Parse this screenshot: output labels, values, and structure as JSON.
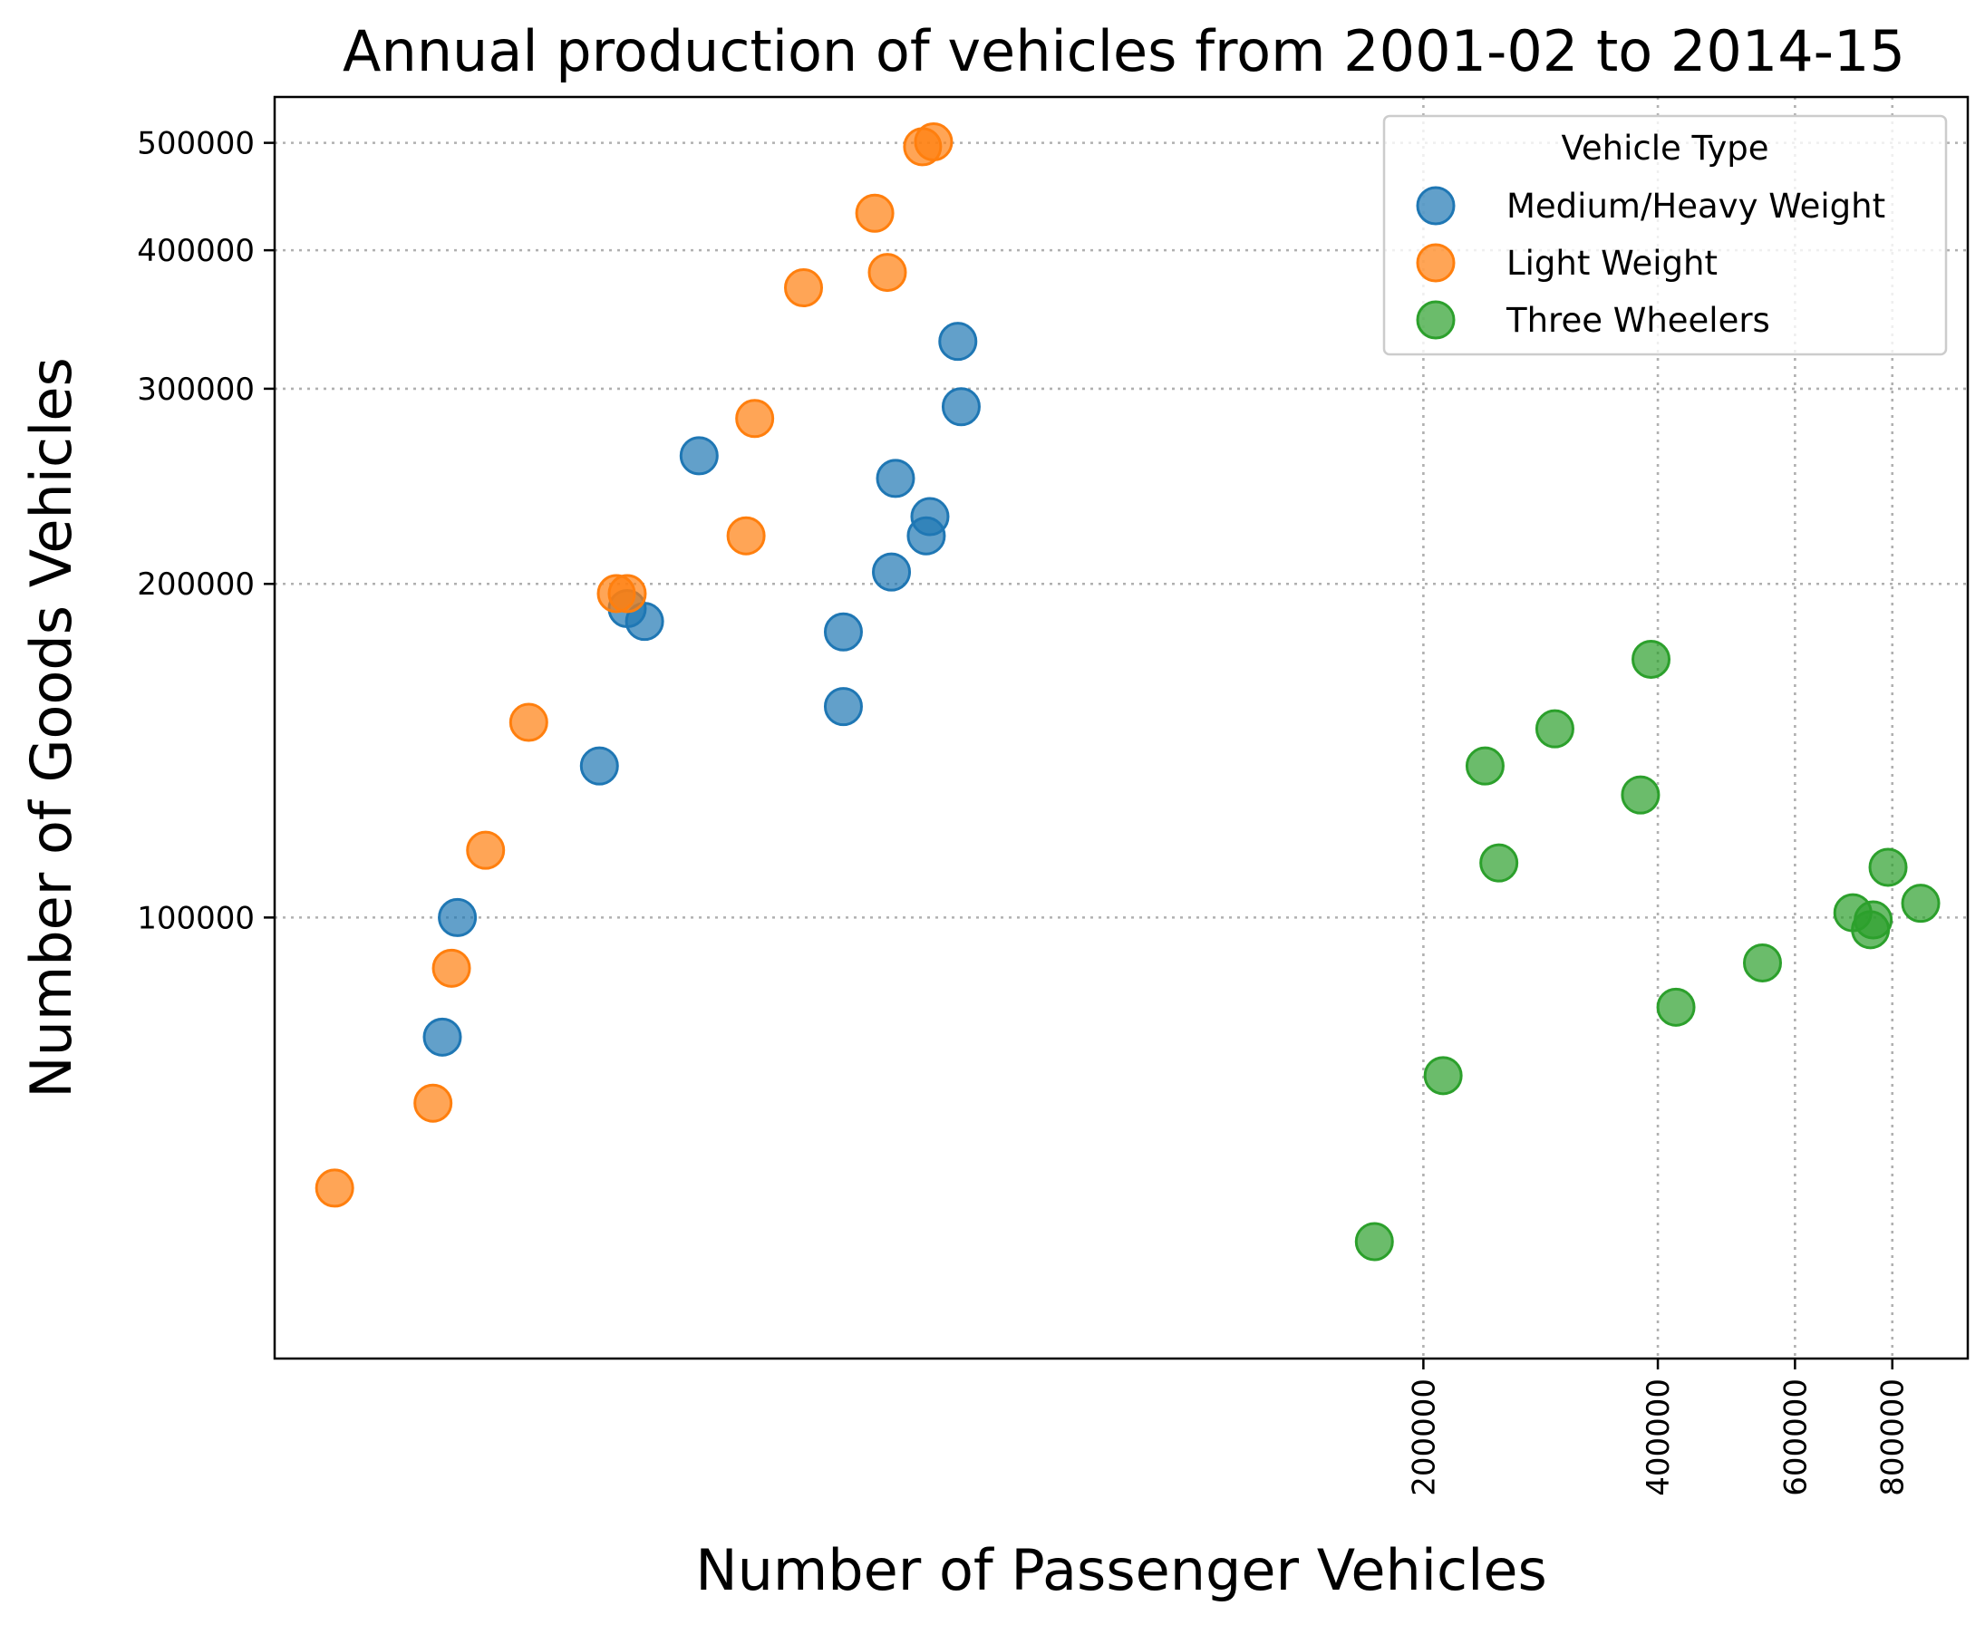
{
  "chart_data": {
    "type": "scatter",
    "title": "Annual production of vehicles from 2001-02 to 2014-15",
    "xlabel": "Number of Passenger Vehicles",
    "ylabel": "Number of Goods Vehicles",
    "x_scale": "log",
    "y_scale": "log",
    "xlim": [
      6700,
      1000000
    ],
    "ylim": [
      40000,
      550000
    ],
    "x_ticks": [
      200000,
      400000,
      600000,
      800000
    ],
    "x_tick_labels": [
      "200000",
      "400000",
      "600000",
      "800000"
    ],
    "y_ticks": [
      100000,
      200000,
      300000,
      400000,
      500000
    ],
    "y_tick_labels": [
      "100000",
      "200000",
      "300000",
      "400000",
      "500000"
    ],
    "grid": true,
    "legend": {
      "title": "Vehicle Type",
      "position": "upper right"
    },
    "series": [
      {
        "name": "Medium/Heavy Weight",
        "color": "#1f77b4",
        "points": [
          {
            "x": 11500,
            "y": 100000
          },
          {
            "x": 11000,
            "y": 78000
          },
          {
            "x": 17500,
            "y": 137000
          },
          {
            "x": 19000,
            "y": 190000
          },
          {
            "x": 20000,
            "y": 185000
          },
          {
            "x": 23500,
            "y": 261000
          },
          {
            "x": 36000,
            "y": 181000
          },
          {
            "x": 36000,
            "y": 155000
          },
          {
            "x": 41500,
            "y": 205000
          },
          {
            "x": 42000,
            "y": 249000
          },
          {
            "x": 46000,
            "y": 221000
          },
          {
            "x": 46500,
            "y": 230000
          },
          {
            "x": 50500,
            "y": 331000
          },
          {
            "x": 51000,
            "y": 289000
          }
        ]
      },
      {
        "name": "Light Weight",
        "color": "#ff7f0e",
        "points": [
          {
            "x": 8000,
            "y": 57000
          },
          {
            "x": 10700,
            "y": 68000
          },
          {
            "x": 11300,
            "y": 90000
          },
          {
            "x": 12500,
            "y": 115000
          },
          {
            "x": 14200,
            "y": 150000
          },
          {
            "x": 18400,
            "y": 196000
          },
          {
            "x": 19000,
            "y": 196000
          },
          {
            "x": 27000,
            "y": 221000
          },
          {
            "x": 27700,
            "y": 282000
          },
          {
            "x": 32000,
            "y": 370000
          },
          {
            "x": 39500,
            "y": 432000
          },
          {
            "x": 41000,
            "y": 382000
          },
          {
            "x": 45500,
            "y": 496000
          },
          {
            "x": 47000,
            "y": 501000
          }
        ]
      },
      {
        "name": "Three Wheelers",
        "color": "#2ca02c",
        "points": [
          {
            "x": 173000,
            "y": 51000
          },
          {
            "x": 212000,
            "y": 72000
          },
          {
            "x": 240000,
            "y": 137000
          },
          {
            "x": 250000,
            "y": 112000
          },
          {
            "x": 295000,
            "y": 148000
          },
          {
            "x": 380000,
            "y": 129000
          },
          {
            "x": 392000,
            "y": 171000
          },
          {
            "x": 422000,
            "y": 83000
          },
          {
            "x": 545000,
            "y": 91000
          },
          {
            "x": 712000,
            "y": 101000
          },
          {
            "x": 756000,
            "y": 99500
          },
          {
            "x": 750000,
            "y": 97500
          },
          {
            "x": 790000,
            "y": 111000
          },
          {
            "x": 870000,
            "y": 103000
          }
        ]
      }
    ]
  }
}
